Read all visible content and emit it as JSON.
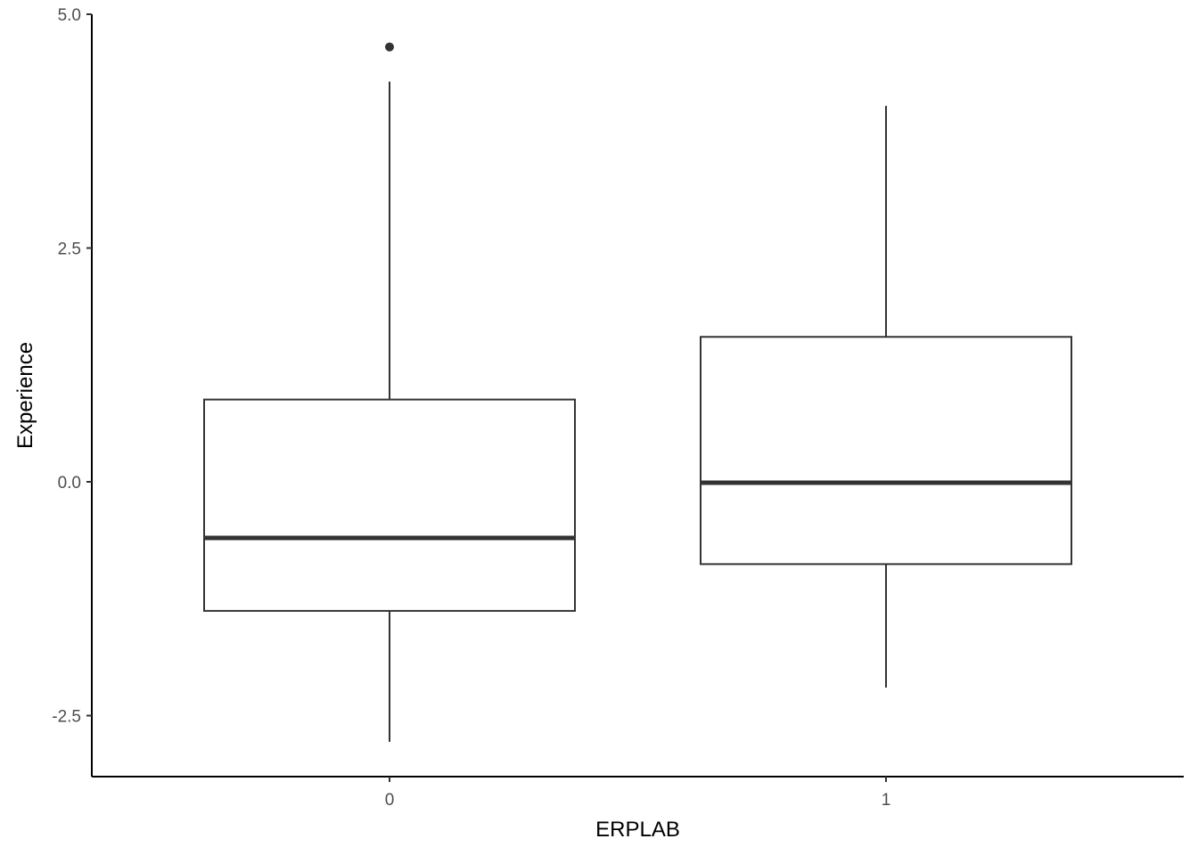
{
  "chart_data": {
    "type": "boxplot",
    "xlabel": "ERPLAB",
    "ylabel": "Experience",
    "categories": [
      "0",
      "1"
    ],
    "ylim": [
      -3.15,
      5.0
    ],
    "yticks": [
      5.0,
      2.5,
      0.0,
      -2.5
    ],
    "ytick_labels": [
      "5.0",
      "2.5",
      "0.0",
      "-2.5"
    ],
    "boxes": [
      {
        "category": "0",
        "whisker_low": -2.78,
        "q1": -1.38,
        "median": -0.6,
        "q3": 0.88,
        "whisker_high": 4.28,
        "outliers": [
          4.65
        ]
      },
      {
        "category": "1",
        "whisker_low": -2.2,
        "q1": -0.88,
        "median": -0.01,
        "q3": 1.55,
        "whisker_high": 4.02,
        "outliers": []
      }
    ],
    "grid": false,
    "colors": {
      "line": "#333333",
      "median": "#333333",
      "axis": "#000000",
      "fill": "#ffffff"
    }
  }
}
